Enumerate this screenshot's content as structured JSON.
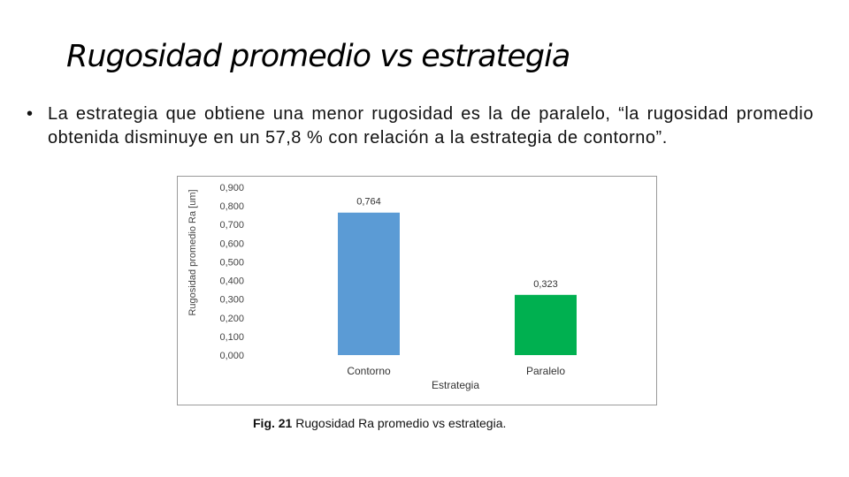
{
  "slide": {
    "title": "Rugosidad promedio vs estrategia",
    "bullet_symbol": "•",
    "bullet_text": "La estrategia que obtiene una menor rugosidad es la de paralelo, “la rugosidad promedio obtenida disminuye en un 57,8 % con relación a la estrategia de contorno”."
  },
  "chart_data": {
    "type": "bar",
    "categories": [
      "Contorno",
      "Paralelo"
    ],
    "values": [
      0.764,
      0.323
    ],
    "value_labels": [
      "0,764",
      "0,323"
    ],
    "colors": [
      "#5b9bd5",
      "#00b050"
    ],
    "xlabel": "Estrategia",
    "ylabel": "Rugosidad promedio Ra [um]",
    "ylim": [
      0,
      0.9
    ],
    "yticks": [
      0,
      0.1,
      0.2,
      0.3,
      0.4,
      0.5,
      0.6,
      0.7,
      0.8,
      0.9
    ],
    "ytick_labels": [
      "0,000",
      "0,100",
      "0,200",
      "0,300",
      "0,400",
      "0,500",
      "0,600",
      "0,700",
      "0,800",
      "0,900"
    ],
    "grid": false,
    "legend": "none"
  },
  "caption": {
    "label": "Fig. 21",
    "text": "Rugosidad Ra promedio vs estrategia."
  }
}
